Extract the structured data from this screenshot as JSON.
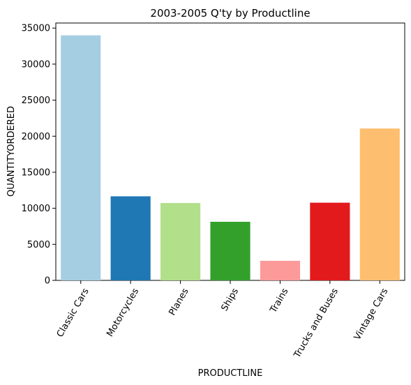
{
  "chart_data": {
    "type": "bar",
    "title": "2003-2005 Q'ty by Productline",
    "xlabel": "PRODUCTLINE",
    "ylabel": "QUANTITYORDERED",
    "categories": [
      "Classic Cars",
      "Motorcycles",
      "Planes",
      "Ships",
      "Trains",
      "Trucks and Buses",
      "Vintage Cars"
    ],
    "values": [
      33992,
      11663,
      10727,
      8127,
      2712,
      10777,
      21069
    ],
    "colors": [
      "#a6cee3",
      "#1f78b4",
      "#b2df8a",
      "#33a02c",
      "#fb9a99",
      "#e31a1c",
      "#fdbf6f"
    ],
    "yticks": [
      "0",
      "5000",
      "10000",
      "15000",
      "20000",
      "25000",
      "30000",
      "35000"
    ],
    "ylim": [
      0,
      35700
    ],
    "grid": false,
    "legend": "none"
  }
}
